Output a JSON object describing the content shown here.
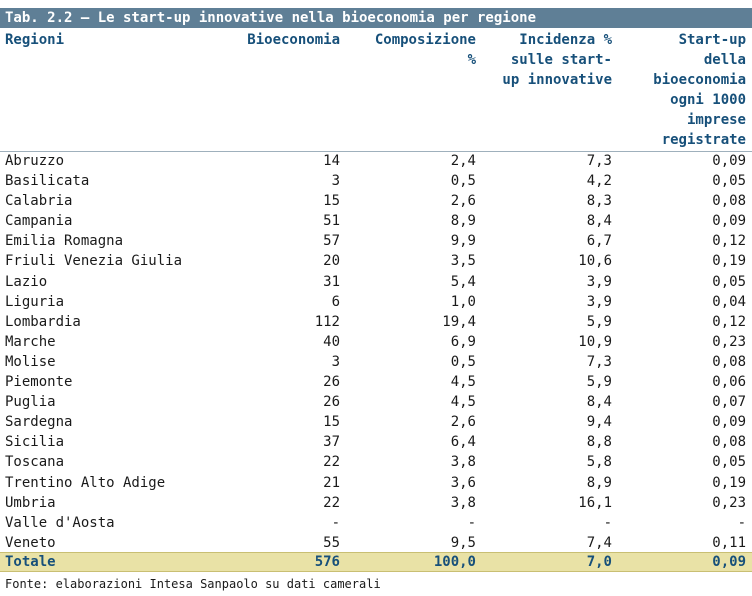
{
  "title": "Tab. 2.2 – Le start-up innovative nella bioeconomia per regione",
  "headers": {
    "regioni": "Regioni",
    "bioeconomia": "Bioeconomia",
    "composizione": "Composizione\n%",
    "incidenza": "Incidenza %\nsulle start-\nup innovative",
    "startup": "Start-up\ndella\nbioeconomia\nogni 1000\nimprese\nregistrate"
  },
  "rows": [
    {
      "regione": "Abruzzo",
      "bio": "14",
      "comp": "2,4",
      "inc": "7,3",
      "su": "0,09"
    },
    {
      "regione": "Basilicata",
      "bio": "3",
      "comp": "0,5",
      "inc": "4,2",
      "su": "0,05"
    },
    {
      "regione": "Calabria",
      "bio": "15",
      "comp": "2,6",
      "inc": "8,3",
      "su": "0,08"
    },
    {
      "regione": "Campania",
      "bio": "51",
      "comp": "8,9",
      "inc": "8,4",
      "su": "0,09"
    },
    {
      "regione": "Emilia Romagna",
      "bio": "57",
      "comp": "9,9",
      "inc": "6,7",
      "su": "0,12"
    },
    {
      "regione": "Friuli Venezia Giulia",
      "bio": "20",
      "comp": "3,5",
      "inc": "10,6",
      "su": "0,19"
    },
    {
      "regione": "Lazio",
      "bio": "31",
      "comp": "5,4",
      "inc": "3,9",
      "su": "0,05"
    },
    {
      "regione": "Liguria",
      "bio": "6",
      "comp": "1,0",
      "inc": "3,9",
      "su": "0,04"
    },
    {
      "regione": "Lombardia",
      "bio": "112",
      "comp": "19,4",
      "inc": "5,9",
      "su": "0,12"
    },
    {
      "regione": "Marche",
      "bio": "40",
      "comp": "6,9",
      "inc": "10,9",
      "su": "0,23"
    },
    {
      "regione": "Molise",
      "bio": "3",
      "comp": "0,5",
      "inc": "7,3",
      "su": "0,08"
    },
    {
      "regione": "Piemonte",
      "bio": "26",
      "comp": "4,5",
      "inc": "5,9",
      "su": "0,06"
    },
    {
      "regione": "Puglia",
      "bio": "26",
      "comp": "4,5",
      "inc": "8,4",
      "su": "0,07"
    },
    {
      "regione": "Sardegna",
      "bio": "15",
      "comp": "2,6",
      "inc": "9,4",
      "su": "0,09"
    },
    {
      "regione": "Sicilia",
      "bio": "37",
      "comp": "6,4",
      "inc": "8,8",
      "su": "0,08"
    },
    {
      "regione": "Toscana",
      "bio": "22",
      "comp": "3,8",
      "inc": "5,8",
      "su": "0,05"
    },
    {
      "regione": "Trentino Alto Adige",
      "bio": "21",
      "comp": "3,6",
      "inc": "8,9",
      "su": "0,19"
    },
    {
      "regione": "Umbria",
      "bio": "22",
      "comp": "3,8",
      "inc": "16,1",
      "su": "0,23"
    },
    {
      "regione": "Valle d'Aosta",
      "bio": "-",
      "comp": "-",
      "inc": "-",
      "su": "-"
    },
    {
      "regione": "Veneto",
      "bio": "55",
      "comp": "9,5",
      "inc": "7,4",
      "su": "0,11"
    }
  ],
  "total": {
    "regione": "Totale",
    "bio": "576",
    "comp": "100,0",
    "inc": "7,0",
    "su": "0,09"
  },
  "source": "Fonte: elaborazioni Intesa Sanpaolo su dati camerali"
}
